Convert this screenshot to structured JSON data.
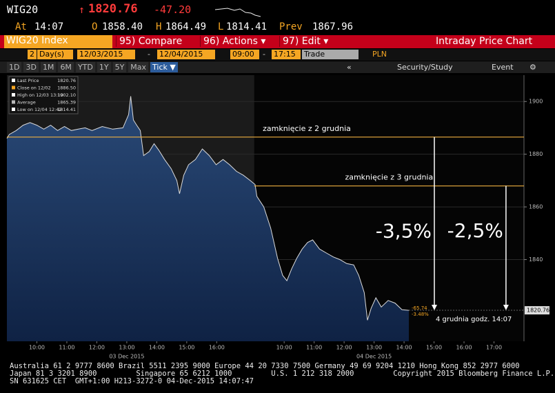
{
  "header": {
    "symbol": "WIG20",
    "arrow": "↑",
    "last": "1820.76",
    "change": "-47.20",
    "at_label": "At",
    "time": "14:07",
    "open_label": "O",
    "open": "1858.40",
    "high_label": "H",
    "high": "1864.49",
    "low_label": "L",
    "low": "1814.41",
    "prev_label": "Prev",
    "prev": "1867.96"
  },
  "toolbar": {
    "security": "WIG20 Index",
    "buttons": [
      "95) Compare",
      "96) Actions ▾",
      "97) Edit ▾"
    ],
    "title": "Intraday Price Chart"
  },
  "range": {
    "count": "2",
    "unit": "Day(s)",
    "start_date": "12/03/2015",
    "dash": "-",
    "end_date": "12/04/2015",
    "start_time": "09:00",
    "end_time": "17:15",
    "type": "Trade",
    "currency": "PLN"
  },
  "tabs": [
    "1D",
    "3D",
    "1M",
    "6M",
    "YTD",
    "1Y",
    "5Y",
    "Max",
    "Tick ▼"
  ],
  "tools": [
    "«",
    "Security/Study",
    "Event"
  ],
  "chart_data": {
    "type": "line",
    "x": [
      9.0,
      9.08,
      9.31,
      9.54,
      9.77,
      10.0,
      10.23,
      10.46,
      10.69,
      10.92,
      11.15,
      11.38,
      11.61,
      11.84,
      12.18,
      12.53,
      12.87,
      13.06,
      13.13,
      13.22,
      13.33,
      13.45,
      13.56,
      13.75,
      13.91,
      14.07,
      14.26,
      14.48,
      14.67,
      14.76,
      14.9,
      15.06,
      15.29,
      15.52,
      15.75,
      15.98,
      16.21,
      16.43,
      16.66,
      16.89,
      17.12,
      17.28,
      17.34,
      17.57,
      17.8,
      18.03,
      18.2,
      18.34,
      18.5,
      18.67,
      18.85,
      19.03,
      19.2,
      19.43,
      19.66,
      19.89,
      20.11,
      20.34,
      20.57,
      20.74,
      20.92,
      21.03,
      21.15,
      21.31,
      21.49,
      21.72,
      21.95,
      22.18,
      22.41
    ],
    "series": [
      {
        "name": "Last Price",
        "color": "#dcdcdc",
        "values": [
          1886,
          1887.5,
          1889,
          1891,
          1892,
          1891,
          1889.5,
          1891,
          1889,
          1890.5,
          1889,
          1889.5,
          1890,
          1889,
          1890.5,
          1889.5,
          1890,
          1895,
          1902,
          1893,
          1891,
          1889,
          1879.5,
          1881,
          1884,
          1881.5,
          1878,
          1874.5,
          1870,
          1865,
          1872,
          1876,
          1878,
          1882,
          1879.5,
          1876,
          1878,
          1876,
          1873.5,
          1872,
          1870,
          1868.5,
          1864,
          1860,
          1852,
          1840.5,
          1834,
          1832,
          1836.5,
          1840.5,
          1844,
          1846.5,
          1847.5,
          1844,
          1842.5,
          1841,
          1840,
          1838.5,
          1838,
          1834,
          1827.5,
          1817,
          1821.5,
          1825.5,
          1822,
          1824.5,
          1823.5,
          1821,
          1820.76
        ]
      }
    ],
    "xlim": [
      9,
      26.25
    ],
    "ylim": [
      1809,
      1910
    ],
    "xticks": [
      {
        "value": 10,
        "label": "10:00"
      },
      {
        "value": 11,
        "label": "11:00"
      },
      {
        "value": 12,
        "label": "12:00"
      },
      {
        "value": 13,
        "label": "13:00"
      },
      {
        "value": 14,
        "label": "14:00"
      },
      {
        "value": 15,
        "label": "15:00"
      },
      {
        "value": 16,
        "label": "16:00"
      },
      {
        "value": 18.25,
        "label": "10:00"
      },
      {
        "value": 19.25,
        "label": "11:00"
      },
      {
        "value": 20.25,
        "label": "12:00"
      },
      {
        "value": 21.25,
        "label": "13:00"
      },
      {
        "value": 22.25,
        "label": "14:00"
      },
      {
        "value": 23.25,
        "label": "15:00"
      },
      {
        "value": 24.25,
        "label": "16:00"
      },
      {
        "value": 25.25,
        "label": "17:00"
      }
    ],
    "yticks": [
      1840,
      1860,
      1880,
      1900
    ],
    "last_price_tag": 1820.76,
    "date_labels": [
      {
        "label": "03 Dec 2015",
        "x": 13
      },
      {
        "label": "04 Dec 2015",
        "x": 21.25
      }
    ],
    "reference_lines": [
      {
        "label": "zamknięcie z 2 grudnia",
        "value": 1886.5,
        "x_from": 9,
        "color": "#f0b040"
      },
      {
        "label": "zamknięcie z 3 grudnia",
        "value": 1867.96,
        "x_from": 17.25,
        "color": "#f0b040"
      }
    ],
    "arrows": [
      {
        "label": "-3,5%",
        "x": 23.26,
        "from": 1886.5,
        "to": 1820.76
      },
      {
        "label": "-2,5%",
        "x": 25.65,
        "from": 1867.96,
        "to": 1820.76
      }
    ],
    "end_labels": [
      "-65.74",
      "-3.48%"
    ],
    "note": "4 grudnia godz. 14:07",
    "legend_box": [
      {
        "name": "Last Price",
        "value": "1820.76"
      },
      {
        "name": "Close on 12/02",
        "value": "1886.50"
      },
      {
        "name": "High on 12/03 13:10",
        "value": "1902.10"
      },
      {
        "name": "Average",
        "value": "1865.39"
      },
      {
        "name": "Low on 12/04 12:42",
        "value": "1814.41"
      }
    ]
  },
  "footer": [
    "Australia 61 2 9777 8600 Brazil 5511 2395 9000 Europe 44 20 7330 7500 Germany 49 69 9204 1210 Hong Kong 852 2977 6000",
    "Japan 81 3 3201 8900         Singapore 65 6212 1000         U.S. 1 212 318 2000         Copyright 2015 Bloomberg Finance L.P.",
    "SN 631625 CET  GMT+1:00 H213-3272-0 04-Dec-2015 14:07:47"
  ]
}
